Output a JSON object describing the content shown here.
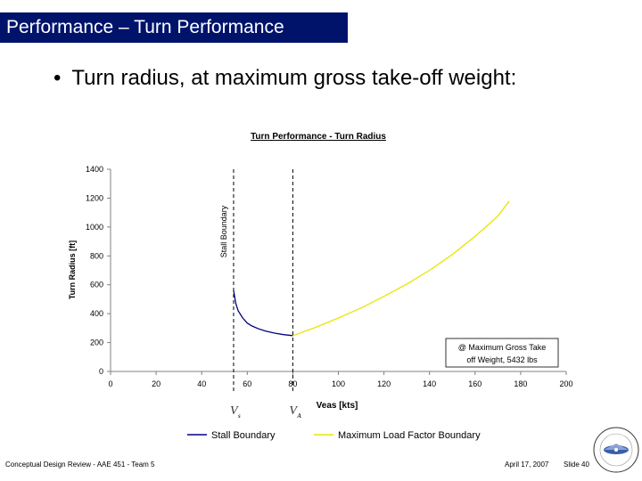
{
  "slide": {
    "title": "Performance – Turn Performance",
    "bullet_marker": "•",
    "bullet_text": "Turn radius, at maximum gross take-off weight:",
    "footer_left": "Conceptual Design Review - AAE 451 - Team 5",
    "footer_date": "April 17, 2007",
    "footer_slide": "Slide 40",
    "title_bg_color": "#00136b",
    "logo_icon": "team-seal-icon"
  },
  "chart_data": {
    "type": "line",
    "title": "Turn Performance - Turn Radius",
    "xlabel": "Veas [kts]",
    "ylabel": "Turn Radius [ft]",
    "xlim": [
      0,
      200
    ],
    "ylim": [
      0,
      1400
    ],
    "x_ticks": [
      0,
      20,
      40,
      60,
      80,
      100,
      120,
      140,
      160,
      180,
      200
    ],
    "y_ticks": [
      0,
      200,
      400,
      600,
      800,
      1000,
      1200,
      1400
    ],
    "grid": false,
    "legend_position": "bottom",
    "series": [
      {
        "name": "Stall Boundary",
        "color": "#000080",
        "x": [
          54,
          55,
          56,
          58,
          60,
          62,
          65,
          68,
          72,
          76,
          80
        ],
        "y": [
          560,
          470,
          420,
          370,
          335,
          315,
          295,
          280,
          265,
          255,
          248
        ]
      },
      {
        "name": "Maximum Load Factor Boundary",
        "color": "#e6e600",
        "x": [
          80,
          90,
          100,
          110,
          120,
          130,
          140,
          150,
          160,
          170,
          175
        ],
        "y": [
          248,
          305,
          370,
          440,
          520,
          605,
          700,
          810,
          935,
          1075,
          1180
        ]
      }
    ],
    "vertical_markers": [
      {
        "x": 54,
        "label": "Stall Boundary",
        "symbol": "V",
        "subscript": "s"
      },
      {
        "x": 80,
        "label": "",
        "symbol": "V",
        "subscript": "A"
      }
    ],
    "annotation": {
      "line1": "@ Maximum Gross Take",
      "line2": "off Weight, 5432 lbs"
    }
  }
}
